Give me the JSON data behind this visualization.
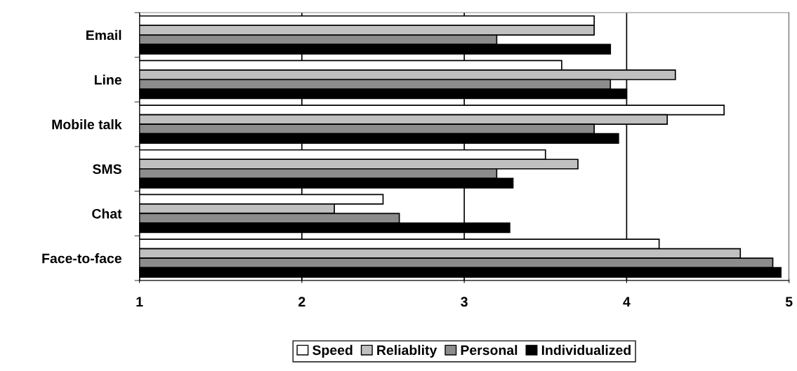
{
  "chart_data": {
    "type": "bar",
    "orientation": "horizontal",
    "categories": [
      "Email",
      "Line",
      "Mobile talk",
      "SMS",
      "Chat",
      "Face-to-face"
    ],
    "series": [
      {
        "name": "Speed",
        "color": "#ffffff",
        "values": [
          3.8,
          3.6,
          4.6,
          3.5,
          2.5,
          4.2
        ]
      },
      {
        "name": "Reliablity",
        "color": "#c0c0c0",
        "values": [
          3.8,
          4.3,
          4.25,
          3.7,
          2.2,
          4.7
        ]
      },
      {
        "name": "Personal",
        "color": "#8c8c8c",
        "values": [
          3.2,
          3.9,
          3.8,
          3.2,
          2.6,
          4.9
        ]
      },
      {
        "name": "Individualized",
        "color": "#000000",
        "values": [
          3.9,
          4.0,
          3.95,
          3.3,
          3.28,
          4.95
        ]
      }
    ],
    "xlim": [
      1,
      5
    ],
    "xticks": [
      1,
      2,
      3,
      4,
      5
    ],
    "grid": "x",
    "legend": "bottom"
  }
}
